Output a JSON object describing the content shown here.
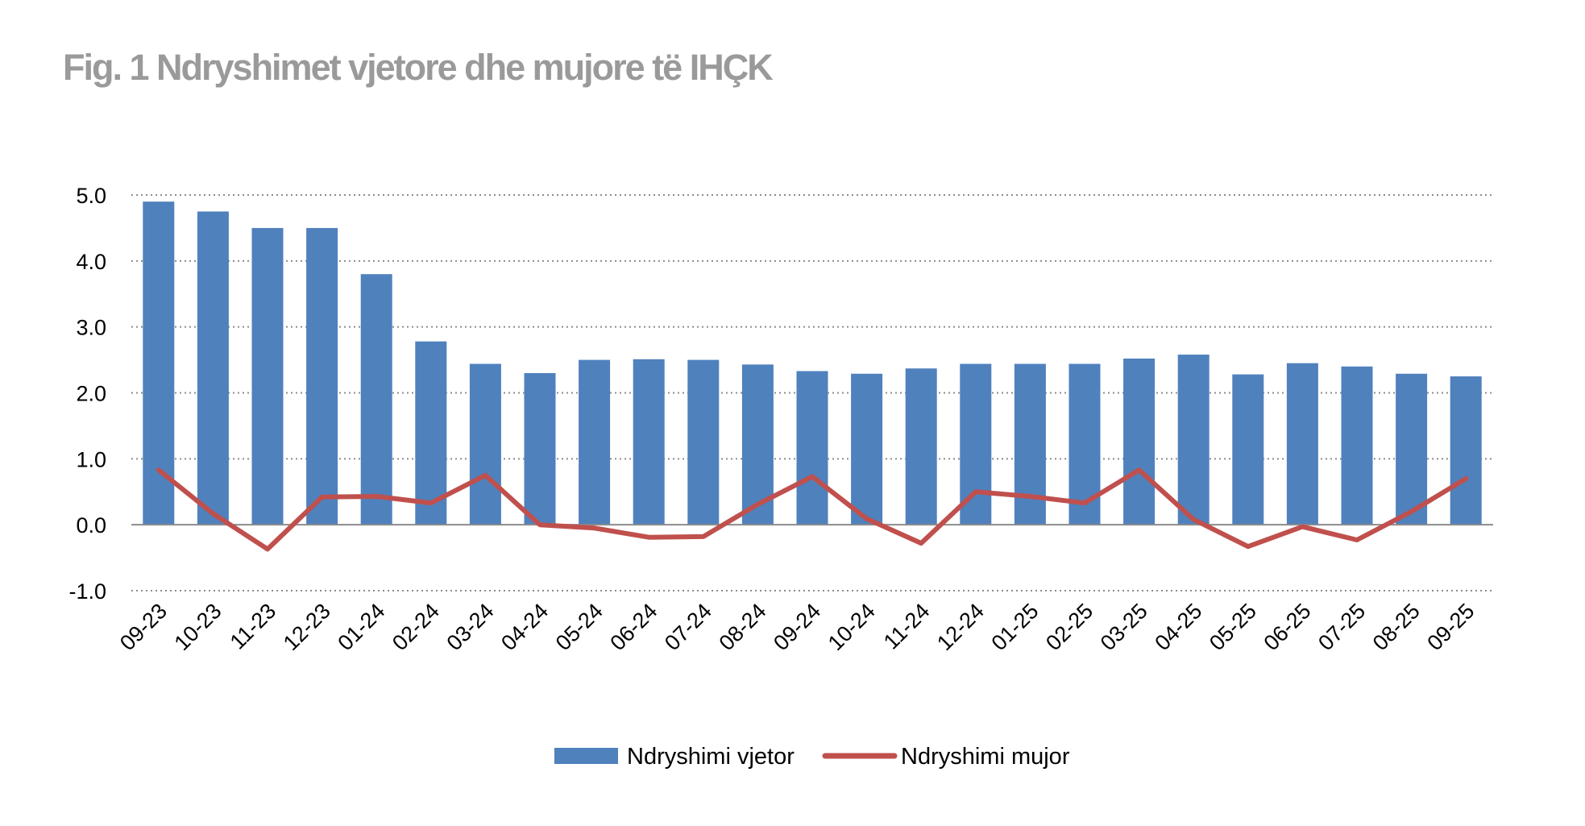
{
  "chart_data": {
    "type": "bar",
    "title": "Fig. 1 Ndryshimet vjetore dhe mujore të IHÇK",
    "xlabel": "",
    "ylabel": "",
    "ylim": [
      -1.0,
      5.0
    ],
    "yticks": [
      "-1.0",
      "0.0",
      "1.0",
      "2.0",
      "3.0",
      "4.0",
      "5.0"
    ],
    "grid": true,
    "legend_position": "bottom-center",
    "categories": [
      "09-23",
      "10-23",
      "11-23",
      "12-23",
      "01-24",
      "02-24",
      "03-24",
      "04-24",
      "05-24",
      "06-24",
      "07-24",
      "08-24",
      "09-24",
      "10-24",
      "11-24",
      "12-24",
      "01-25",
      "02-25",
      "03-25",
      "04-25",
      "05-25",
      "06-25",
      "07-25",
      "08-25",
      "09-25"
    ],
    "series": [
      {
        "name": "Ndryshimi vjetor",
        "type": "bar",
        "color": "#4f81bd",
        "values": [
          4.9,
          4.75,
          4.5,
          4.5,
          3.8,
          2.78,
          2.44,
          2.3,
          2.5,
          2.51,
          2.5,
          2.43,
          2.33,
          2.29,
          2.37,
          2.44,
          2.44,
          2.44,
          2.52,
          2.58,
          2.28,
          2.45,
          2.4,
          2.29,
          2.25
        ]
      },
      {
        "name": "Ndryshimi mujor",
        "type": "line",
        "color": "#c0504d",
        "values": [
          0.83,
          0.17,
          -0.37,
          0.42,
          0.43,
          0.33,
          0.75,
          0.0,
          -0.05,
          -0.19,
          -0.18,
          0.31,
          0.73,
          0.09,
          -0.28,
          0.5,
          0.43,
          0.33,
          0.83,
          0.08,
          -0.33,
          -0.03,
          -0.23,
          0.2,
          0.7
        ]
      }
    ]
  }
}
